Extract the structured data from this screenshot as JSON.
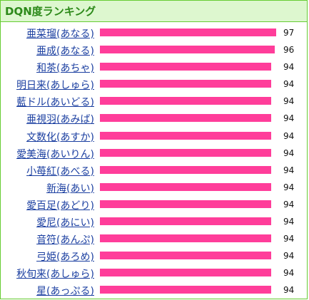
{
  "title": "DQN度ランキング",
  "max_score": 100,
  "colors": {
    "bar": "#ff3d9a",
    "header_bg": "#ddf7cf",
    "border": "#66cc33",
    "link": "#1a3ea0"
  },
  "items": [
    {
      "name": "亜菜瑠(あなる)",
      "score": 97
    },
    {
      "name": "亜成(あなる)",
      "score": 96
    },
    {
      "name": "和茶(あちゃ)",
      "score": 94
    },
    {
      "name": "明日来(あしゅら)",
      "score": 94
    },
    {
      "name": "藍ドル(あいどる)",
      "score": 94
    },
    {
      "name": "亜視羽(あみば)",
      "score": 94
    },
    {
      "name": "文数化(あすか)",
      "score": 94
    },
    {
      "name": "愛美海(あいりん)",
      "score": 94
    },
    {
      "name": "小苺紅(あべる)",
      "score": 94
    },
    {
      "name": "新海(あい)",
      "score": 94
    },
    {
      "name": "愛百足(あどり)",
      "score": 94
    },
    {
      "name": "愛尼(あにい)",
      "score": 94
    },
    {
      "name": "音符(あんぷ)",
      "score": 94
    },
    {
      "name": "弓姫(あろめ)",
      "score": 94
    },
    {
      "name": "秋旬来(あしゅら)",
      "score": 94
    },
    {
      "name": "星(あっぷる)",
      "score": 94
    }
  ]
}
